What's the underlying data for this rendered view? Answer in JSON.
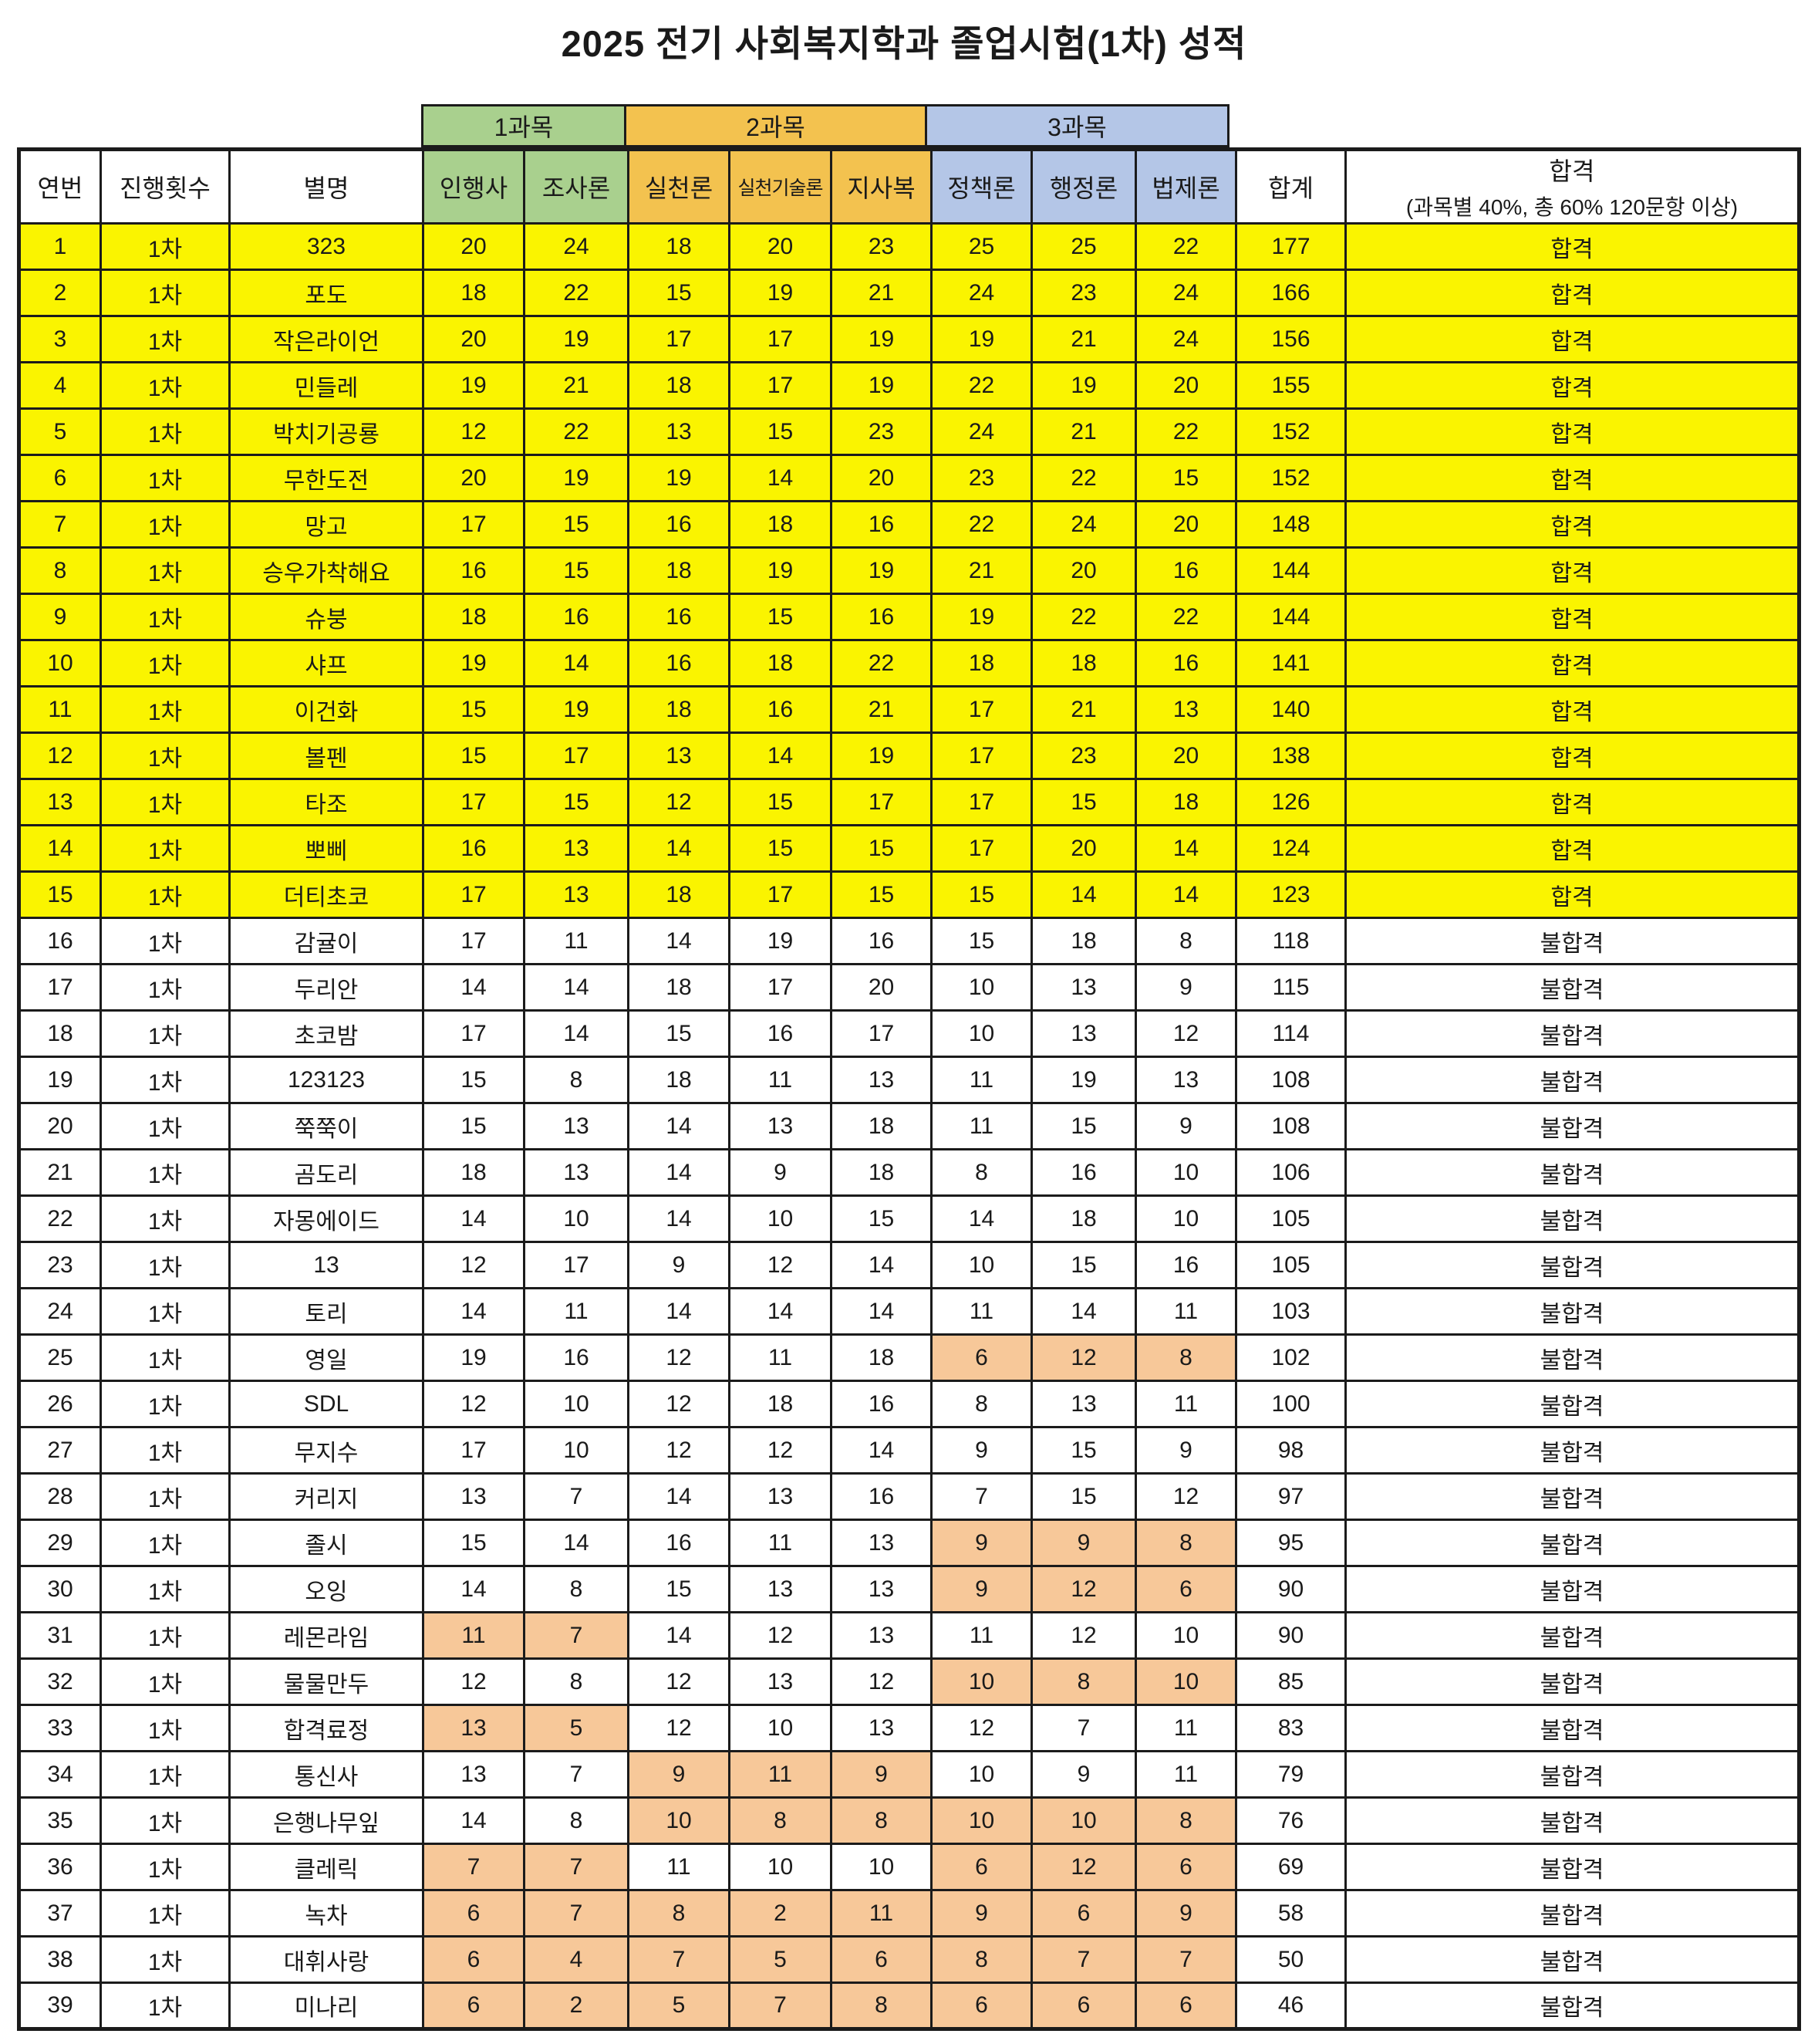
{
  "title": "2025 전기 사회복지학과 졸업시험(1차) 성적",
  "colors": {
    "pass_row": "#FAF400",
    "low_score": "#F7C899",
    "group1": "#A9D08E",
    "group2": "#F3C24F",
    "group3": "#B4C6E7"
  },
  "table": {
    "group_headers": [
      {
        "label": "1과목",
        "subjects": 2
      },
      {
        "label": "2과목",
        "subjects": 3
      },
      {
        "label": "3과목",
        "subjects": 3
      }
    ],
    "columns": [
      "연번",
      "진행횟수",
      "별명",
      "인행사",
      "조사론",
      "실천론",
      "실천기술론",
      "지사복",
      "정책론",
      "행정론",
      "법제론",
      "합계"
    ],
    "result_header": {
      "line1": "합격",
      "line2": "(과목별 40%, 총 60% 120문항 이상)"
    },
    "rows": [
      {
        "no": 1,
        "round": "1차",
        "name": "323",
        "scores": [
          20,
          24,
          18,
          20,
          23,
          25,
          25,
          22
        ],
        "total": 177,
        "result": "합격",
        "pass": true,
        "fail_groups": []
      },
      {
        "no": 2,
        "round": "1차",
        "name": "포도",
        "scores": [
          18,
          22,
          15,
          19,
          21,
          24,
          23,
          24
        ],
        "total": 166,
        "result": "합격",
        "pass": true,
        "fail_groups": []
      },
      {
        "no": 3,
        "round": "1차",
        "name": "작은라이언",
        "scores": [
          20,
          19,
          17,
          17,
          19,
          19,
          21,
          24
        ],
        "total": 156,
        "result": "합격",
        "pass": true,
        "fail_groups": []
      },
      {
        "no": 4,
        "round": "1차",
        "name": "민들레",
        "scores": [
          19,
          21,
          18,
          17,
          19,
          22,
          19,
          20
        ],
        "total": 155,
        "result": "합격",
        "pass": true,
        "fail_groups": []
      },
      {
        "no": 5,
        "round": "1차",
        "name": "박치기공룡",
        "scores": [
          12,
          22,
          13,
          15,
          23,
          24,
          21,
          22
        ],
        "total": 152,
        "result": "합격",
        "pass": true,
        "fail_groups": []
      },
      {
        "no": 6,
        "round": "1차",
        "name": "무한도전",
        "scores": [
          20,
          19,
          19,
          14,
          20,
          23,
          22,
          15
        ],
        "total": 152,
        "result": "합격",
        "pass": true,
        "fail_groups": []
      },
      {
        "no": 7,
        "round": "1차",
        "name": "망고",
        "scores": [
          17,
          15,
          16,
          18,
          16,
          22,
          24,
          20
        ],
        "total": 148,
        "result": "합격",
        "pass": true,
        "fail_groups": []
      },
      {
        "no": 8,
        "round": "1차",
        "name": "승우가착해요",
        "scores": [
          16,
          15,
          18,
          19,
          19,
          21,
          20,
          16
        ],
        "total": 144,
        "result": "합격",
        "pass": true,
        "fail_groups": []
      },
      {
        "no": 9,
        "round": "1차",
        "name": "슈붕",
        "scores": [
          18,
          16,
          16,
          15,
          16,
          19,
          22,
          22
        ],
        "total": 144,
        "result": "합격",
        "pass": true,
        "fail_groups": []
      },
      {
        "no": 10,
        "round": "1차",
        "name": "샤프",
        "scores": [
          19,
          14,
          16,
          18,
          22,
          18,
          18,
          16
        ],
        "total": 141,
        "result": "합격",
        "pass": true,
        "fail_groups": []
      },
      {
        "no": 11,
        "round": "1차",
        "name": "이건화",
        "scores": [
          15,
          19,
          18,
          16,
          21,
          17,
          21,
          13
        ],
        "total": 140,
        "result": "합격",
        "pass": true,
        "fail_groups": []
      },
      {
        "no": 12,
        "round": "1차",
        "name": "볼펜",
        "scores": [
          15,
          17,
          13,
          14,
          19,
          17,
          23,
          20
        ],
        "total": 138,
        "result": "합격",
        "pass": true,
        "fail_groups": []
      },
      {
        "no": 13,
        "round": "1차",
        "name": "타조",
        "scores": [
          17,
          15,
          12,
          15,
          17,
          17,
          15,
          18
        ],
        "total": 126,
        "result": "합격",
        "pass": true,
        "fail_groups": []
      },
      {
        "no": 14,
        "round": "1차",
        "name": "뽀삐",
        "scores": [
          16,
          13,
          14,
          15,
          15,
          17,
          20,
          14
        ],
        "total": 124,
        "result": "합격",
        "pass": true,
        "fail_groups": []
      },
      {
        "no": 15,
        "round": "1차",
        "name": "더티초코",
        "scores": [
          17,
          13,
          18,
          17,
          15,
          15,
          14,
          14
        ],
        "total": 123,
        "result": "합격",
        "pass": true,
        "fail_groups": []
      },
      {
        "no": 16,
        "round": "1차",
        "name": "감귤이",
        "scores": [
          17,
          11,
          14,
          19,
          16,
          15,
          18,
          8
        ],
        "total": 118,
        "result": "불합격",
        "pass": false,
        "fail_groups": []
      },
      {
        "no": 17,
        "round": "1차",
        "name": "두리안",
        "scores": [
          14,
          14,
          18,
          17,
          20,
          10,
          13,
          9
        ],
        "total": 115,
        "result": "불합격",
        "pass": false,
        "fail_groups": []
      },
      {
        "no": 18,
        "round": "1차",
        "name": "초코밤",
        "scores": [
          17,
          14,
          15,
          16,
          17,
          10,
          13,
          12
        ],
        "total": 114,
        "result": "불합격",
        "pass": false,
        "fail_groups": []
      },
      {
        "no": 19,
        "round": "1차",
        "name": "123123",
        "scores": [
          15,
          8,
          18,
          11,
          13,
          11,
          19,
          13
        ],
        "total": 108,
        "result": "불합격",
        "pass": false,
        "fail_groups": []
      },
      {
        "no": 20,
        "round": "1차",
        "name": "쭉쭉이",
        "scores": [
          15,
          13,
          14,
          13,
          18,
          11,
          15,
          9
        ],
        "total": 108,
        "result": "불합격",
        "pass": false,
        "fail_groups": []
      },
      {
        "no": 21,
        "round": "1차",
        "name": "곰도리",
        "scores": [
          18,
          13,
          14,
          9,
          18,
          8,
          16,
          10
        ],
        "total": 106,
        "result": "불합격",
        "pass": false,
        "fail_groups": []
      },
      {
        "no": 22,
        "round": "1차",
        "name": "자몽에이드",
        "scores": [
          14,
          10,
          14,
          10,
          15,
          14,
          18,
          10
        ],
        "total": 105,
        "result": "불합격",
        "pass": false,
        "fail_groups": []
      },
      {
        "no": 23,
        "round": "1차",
        "name": "13",
        "scores": [
          12,
          17,
          9,
          12,
          14,
          10,
          15,
          16
        ],
        "total": 105,
        "result": "불합격",
        "pass": false,
        "fail_groups": []
      },
      {
        "no": 24,
        "round": "1차",
        "name": "토리",
        "scores": [
          14,
          11,
          14,
          14,
          14,
          11,
          14,
          11
        ],
        "total": 103,
        "result": "불합격",
        "pass": false,
        "fail_groups": []
      },
      {
        "no": 25,
        "round": "1차",
        "name": "영일",
        "scores": [
          19,
          16,
          12,
          11,
          18,
          6,
          12,
          8
        ],
        "total": 102,
        "result": "불합격",
        "pass": false,
        "fail_groups": [
          3
        ]
      },
      {
        "no": 26,
        "round": "1차",
        "name": "SDL",
        "scores": [
          12,
          10,
          12,
          18,
          16,
          8,
          13,
          11
        ],
        "total": 100,
        "result": "불합격",
        "pass": false,
        "fail_groups": []
      },
      {
        "no": 27,
        "round": "1차",
        "name": "무지수",
        "scores": [
          17,
          10,
          12,
          12,
          14,
          9,
          15,
          9
        ],
        "total": 98,
        "result": "불합격",
        "pass": false,
        "fail_groups": []
      },
      {
        "no": 28,
        "round": "1차",
        "name": "커리지",
        "scores": [
          13,
          7,
          14,
          13,
          16,
          7,
          15,
          12
        ],
        "total": 97,
        "result": "불합격",
        "pass": false,
        "fail_groups": []
      },
      {
        "no": 29,
        "round": "1차",
        "name": "졸시",
        "scores": [
          15,
          14,
          16,
          11,
          13,
          9,
          9,
          8
        ],
        "total": 95,
        "result": "불합격",
        "pass": false,
        "fail_groups": [
          3
        ]
      },
      {
        "no": 30,
        "round": "1차",
        "name": "오잉",
        "scores": [
          14,
          8,
          15,
          13,
          13,
          9,
          12,
          6
        ],
        "total": 90,
        "result": "불합격",
        "pass": false,
        "fail_groups": [
          3
        ]
      },
      {
        "no": 31,
        "round": "1차",
        "name": "레몬라임",
        "scores": [
          11,
          7,
          14,
          12,
          13,
          11,
          12,
          10
        ],
        "total": 90,
        "result": "불합격",
        "pass": false,
        "fail_groups": [
          1
        ]
      },
      {
        "no": 32,
        "round": "1차",
        "name": "물물만두",
        "scores": [
          12,
          8,
          12,
          13,
          12,
          10,
          8,
          10
        ],
        "total": 85,
        "result": "불합격",
        "pass": false,
        "fail_groups": [
          3
        ]
      },
      {
        "no": 33,
        "round": "1차",
        "name": "합격료정",
        "scores": [
          13,
          5,
          12,
          10,
          13,
          12,
          7,
          11
        ],
        "total": 83,
        "result": "불합격",
        "pass": false,
        "fail_groups": [
          1
        ]
      },
      {
        "no": 34,
        "round": "1차",
        "name": "통신사",
        "scores": [
          13,
          7,
          9,
          11,
          9,
          10,
          9,
          11
        ],
        "total": 79,
        "result": "불합격",
        "pass": false,
        "fail_groups": [
          2
        ]
      },
      {
        "no": 35,
        "round": "1차",
        "name": "은행나무잎",
        "scores": [
          14,
          8,
          10,
          8,
          8,
          10,
          10,
          8
        ],
        "total": 76,
        "result": "불합격",
        "pass": false,
        "fail_groups": [
          2,
          3
        ]
      },
      {
        "no": 36,
        "round": "1차",
        "name": "클레릭",
        "scores": [
          7,
          7,
          11,
          10,
          10,
          6,
          12,
          6
        ],
        "total": 69,
        "result": "불합격",
        "pass": false,
        "fail_groups": [
          1,
          3
        ]
      },
      {
        "no": 37,
        "round": "1차",
        "name": "녹차",
        "scores": [
          6,
          7,
          8,
          2,
          11,
          9,
          6,
          9
        ],
        "total": 58,
        "result": "불합격",
        "pass": false,
        "fail_groups": [
          1,
          2,
          3
        ]
      },
      {
        "no": 38,
        "round": "1차",
        "name": "대휘사랑",
        "scores": [
          6,
          4,
          7,
          5,
          6,
          8,
          7,
          7
        ],
        "total": 50,
        "result": "불합격",
        "pass": false,
        "fail_groups": [
          1,
          2,
          3
        ]
      },
      {
        "no": 39,
        "round": "1차",
        "name": "미나리",
        "scores": [
          6,
          2,
          5,
          7,
          8,
          6,
          6,
          6
        ],
        "total": 46,
        "result": "불합격",
        "pass": false,
        "fail_groups": [
          1,
          2,
          3
        ]
      }
    ]
  }
}
